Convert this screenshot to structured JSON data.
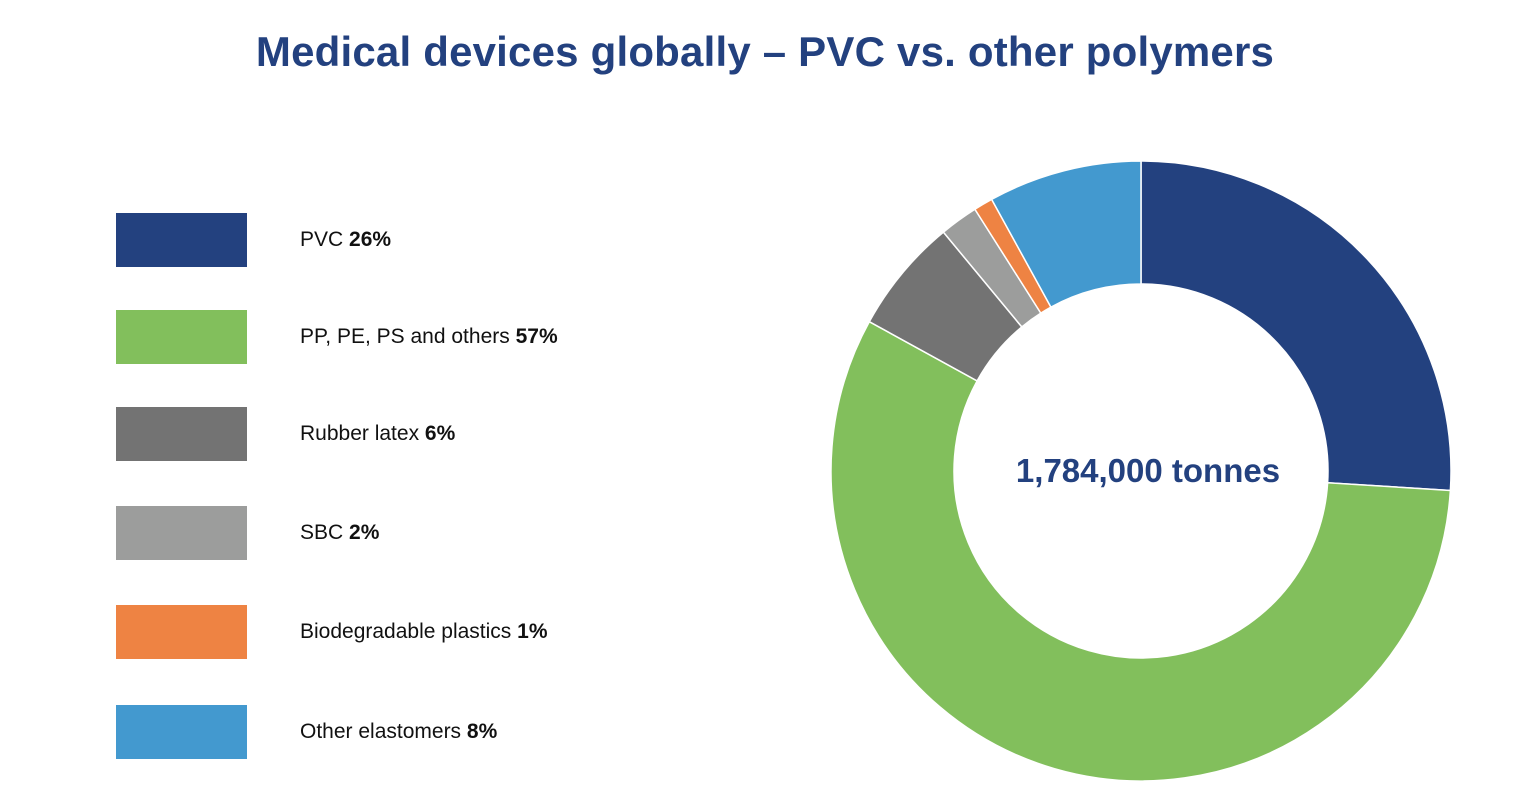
{
  "title": "Medical devices globally – PVC vs. other polymers",
  "chart_data": {
    "type": "pie",
    "title": "Medical devices globally – PVC vs. other polymers",
    "center_label": "1,784,000 tonnes",
    "unit": "%",
    "start_angle_deg": 0,
    "direction": "clockwise",
    "slices": [
      {
        "name": "PVC",
        "value": 26,
        "percent_label": "26%",
        "color": "#23417f"
      },
      {
        "name": "PP, PE, PS and others",
        "value": 57,
        "percent_label": "57%",
        "color": "#82bf5c"
      },
      {
        "name": "Rubber latex",
        "value": 6,
        "percent_label": "6%",
        "color": "#737373"
      },
      {
        "name": "SBC",
        "value": 2,
        "percent_label": "2%",
        "color": "#9c9d9c"
      },
      {
        "name": "Biodegradable plastics",
        "value": 1,
        "percent_label": "1%",
        "color": "#ee8343"
      },
      {
        "name": "Other elastomers",
        "value": 8,
        "percent_label": "8%",
        "color": "#4399cf"
      }
    ]
  }
}
